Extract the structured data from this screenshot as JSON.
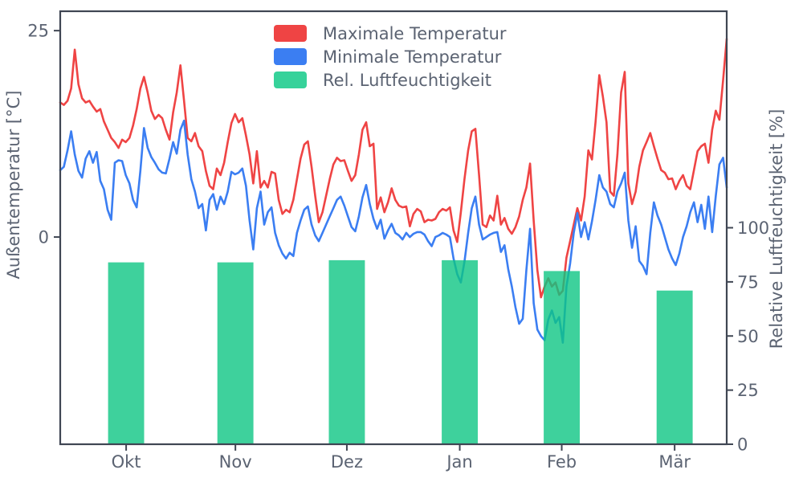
{
  "colors": {
    "red": "#ef4444",
    "blue": "#3b7ef2",
    "green": "#0ec583",
    "green_solid": "#36d29a",
    "text": "#5b6372",
    "spine": "#3f4653",
    "background": "#ffffff"
  },
  "chart_data": {
    "type": "line+bar",
    "x_unit": "day",
    "n_days": 184,
    "month_ticks": {
      "labels": [
        "Okt",
        "Nov",
        "Dez",
        "Jan",
        "Feb",
        "Mär"
      ],
      "day_positions": [
        18.1,
        48.1,
        78.7,
        109.7,
        137.7,
        168.7
      ]
    },
    "left_axis": {
      "label": "Außentemperatur [°C]",
      "ticks": [
        0,
        25
      ],
      "range": [
        -25.1,
        27.35
      ]
    },
    "right_axis": {
      "label": "Relative Luftfeuchtigkeit [%]",
      "ticks": [
        0,
        25,
        50,
        75,
        100
      ],
      "range": [
        0,
        200
      ]
    },
    "legend": {
      "position": "upper-center",
      "entries": [
        "Maximale Temperatur",
        "Minimale Temperatur",
        "Rel. Luftfeuchtigkeit"
      ]
    },
    "series": [
      {
        "name": "Maximale Temperatur",
        "type": "line",
        "axis": "left",
        "color_key": "red",
        "values": [
          16.3,
          16.0,
          16.5,
          18.0,
          22.7,
          18.5,
          16.8,
          16.3,
          16.5,
          15.8,
          15.2,
          15.5,
          14.0,
          13.0,
          12.0,
          11.5,
          10.8,
          11.8,
          11.5,
          12.0,
          13.5,
          15.5,
          18.0,
          19.4,
          17.5,
          15.3,
          14.3,
          14.8,
          14.4,
          13.0,
          11.8,
          15.1,
          17.5,
          20.8,
          16.5,
          12.0,
          11.6,
          12.6,
          11.0,
          10.4,
          8.0,
          6.2,
          5.8,
          8.3,
          7.5,
          9.0,
          11.5,
          13.8,
          14.9,
          13.9,
          14.4,
          12.3,
          10.0,
          6.5,
          10.4,
          6.0,
          6.8,
          6.0,
          7.9,
          7.7,
          4.5,
          2.8,
          3.3,
          3.0,
          4.5,
          7.0,
          9.5,
          11.2,
          11.6,
          8.5,
          5.0,
          1.8,
          3.0,
          5.0,
          7.0,
          8.8,
          9.6,
          9.2,
          9.3,
          8.0,
          6.8,
          7.5,
          10.0,
          13.0,
          13.9,
          11.0,
          11.3,
          3.4,
          4.8,
          3.0,
          4.2,
          5.9,
          4.5,
          3.8,
          3.6,
          3.7,
          1.3,
          2.8,
          3.4,
          3.1,
          1.8,
          2.1,
          2.0,
          2.2,
          3.0,
          3.4,
          3.2,
          3.6,
          0.8,
          -0.6,
          3.0,
          7.0,
          10.5,
          12.8,
          13.1,
          7.5,
          1.5,
          1.2,
          2.6,
          2.0,
          5.0,
          1.5,
          2.3,
          1.0,
          0.4,
          1.2,
          2.5,
          4.5,
          6.0,
          8.9,
          2.0,
          -4.0,
          -7.3,
          -6.0,
          -5.0,
          -6.0,
          -5.5,
          -7.0,
          -6.5,
          -2.5,
          -0.5,
          1.5,
          3.5,
          2.0,
          4.9,
          10.5,
          9.4,
          14.0,
          19.6,
          17.0,
          13.9,
          5.5,
          5.0,
          10.0,
          17.5,
          20.0,
          6.5,
          4.0,
          5.5,
          8.5,
          10.5,
          11.5,
          12.6,
          11.0,
          9.5,
          8.1,
          7.8,
          7.0,
          7.1,
          5.8,
          6.8,
          7.5,
          6.2,
          5.8,
          8.1,
          10.4,
          11.0,
          11.3,
          9.0,
          13.0,
          15.3,
          14.2,
          19.0,
          24.0
        ]
      },
      {
        "name": "Minimale Temperatur",
        "type": "line",
        "axis": "left",
        "color_key": "blue",
        "values": [
          8.1,
          8.5,
          10.5,
          12.8,
          10.0,
          8.0,
          7.2,
          9.5,
          10.4,
          9.0,
          10.3,
          6.8,
          5.8,
          3.3,
          2.1,
          9.0,
          9.3,
          9.2,
          7.5,
          6.5,
          4.5,
          3.6,
          8.0,
          13.2,
          10.8,
          9.7,
          9.0,
          8.2,
          7.8,
          7.7,
          9.5,
          11.5,
          10.1,
          13.0,
          14.1,
          10.0,
          7.0,
          5.5,
          3.5,
          4.0,
          0.8,
          4.5,
          5.2,
          3.3,
          4.9,
          4.0,
          5.5,
          7.9,
          7.6,
          7.8,
          8.3,
          6.2,
          2.0,
          -1.5,
          3.5,
          5.5,
          1.5,
          3.0,
          3.6,
          0.5,
          -1.0,
          -2.0,
          -2.6,
          -1.9,
          -2.3,
          0.5,
          2.0,
          3.3,
          3.7,
          1.5,
          0.2,
          -0.5,
          0.5,
          1.5,
          2.5,
          3.5,
          4.5,
          4.9,
          3.8,
          2.5,
          1.2,
          0.7,
          2.5,
          4.8,
          6.3,
          4.0,
          2.2,
          1.0,
          2.1,
          -0.2,
          0.8,
          1.6,
          0.5,
          0.2,
          -0.3,
          0.5,
          0.0,
          0.4,
          0.6,
          0.6,
          0.3,
          -0.5,
          -1.1,
          0.0,
          0.2,
          0.5,
          0.3,
          0.0,
          -2.6,
          -4.5,
          -5.5,
          -3.0,
          0.5,
          3.5,
          4.9,
          1.5,
          -0.3,
          0.0,
          0.3,
          0.5,
          0.6,
          -1.8,
          -1.0,
          -3.9,
          -6.0,
          -8.5,
          -10.5,
          -9.9,
          -4.0,
          1.0,
          -8.0,
          -11.2,
          -12.0,
          -12.5,
          -10.0,
          -8.9,
          -10.4,
          -9.7,
          -12.8,
          -6.0,
          -3.2,
          0.5,
          2.9,
          0.0,
          1.8,
          -0.3,
          1.9,
          4.5,
          7.5,
          6.0,
          5.5,
          4.0,
          3.6,
          5.5,
          6.5,
          7.8,
          2.0,
          -1.3,
          1.3,
          -2.9,
          -3.5,
          -4.5,
          0.5,
          4.2,
          2.6,
          1.5,
          0.0,
          -1.5,
          -2.6,
          -3.4,
          -2.0,
          0.0,
          1.3,
          3.0,
          4.2,
          1.8,
          3.9,
          1.0,
          4.9,
          0.6,
          5.0,
          8.8,
          9.6,
          6.0
        ]
      },
      {
        "name": "Rel. Luftfeuchtigkeit",
        "type": "bar",
        "axis": "right",
        "color_key": "green",
        "bar_centers_days": [
          18.1,
          48.1,
          78.7,
          109.7,
          137.7,
          168.7
        ],
        "bar_width_days": 9.9,
        "values": [
          84,
          84,
          85,
          85,
          80,
          71
        ]
      }
    ]
  }
}
